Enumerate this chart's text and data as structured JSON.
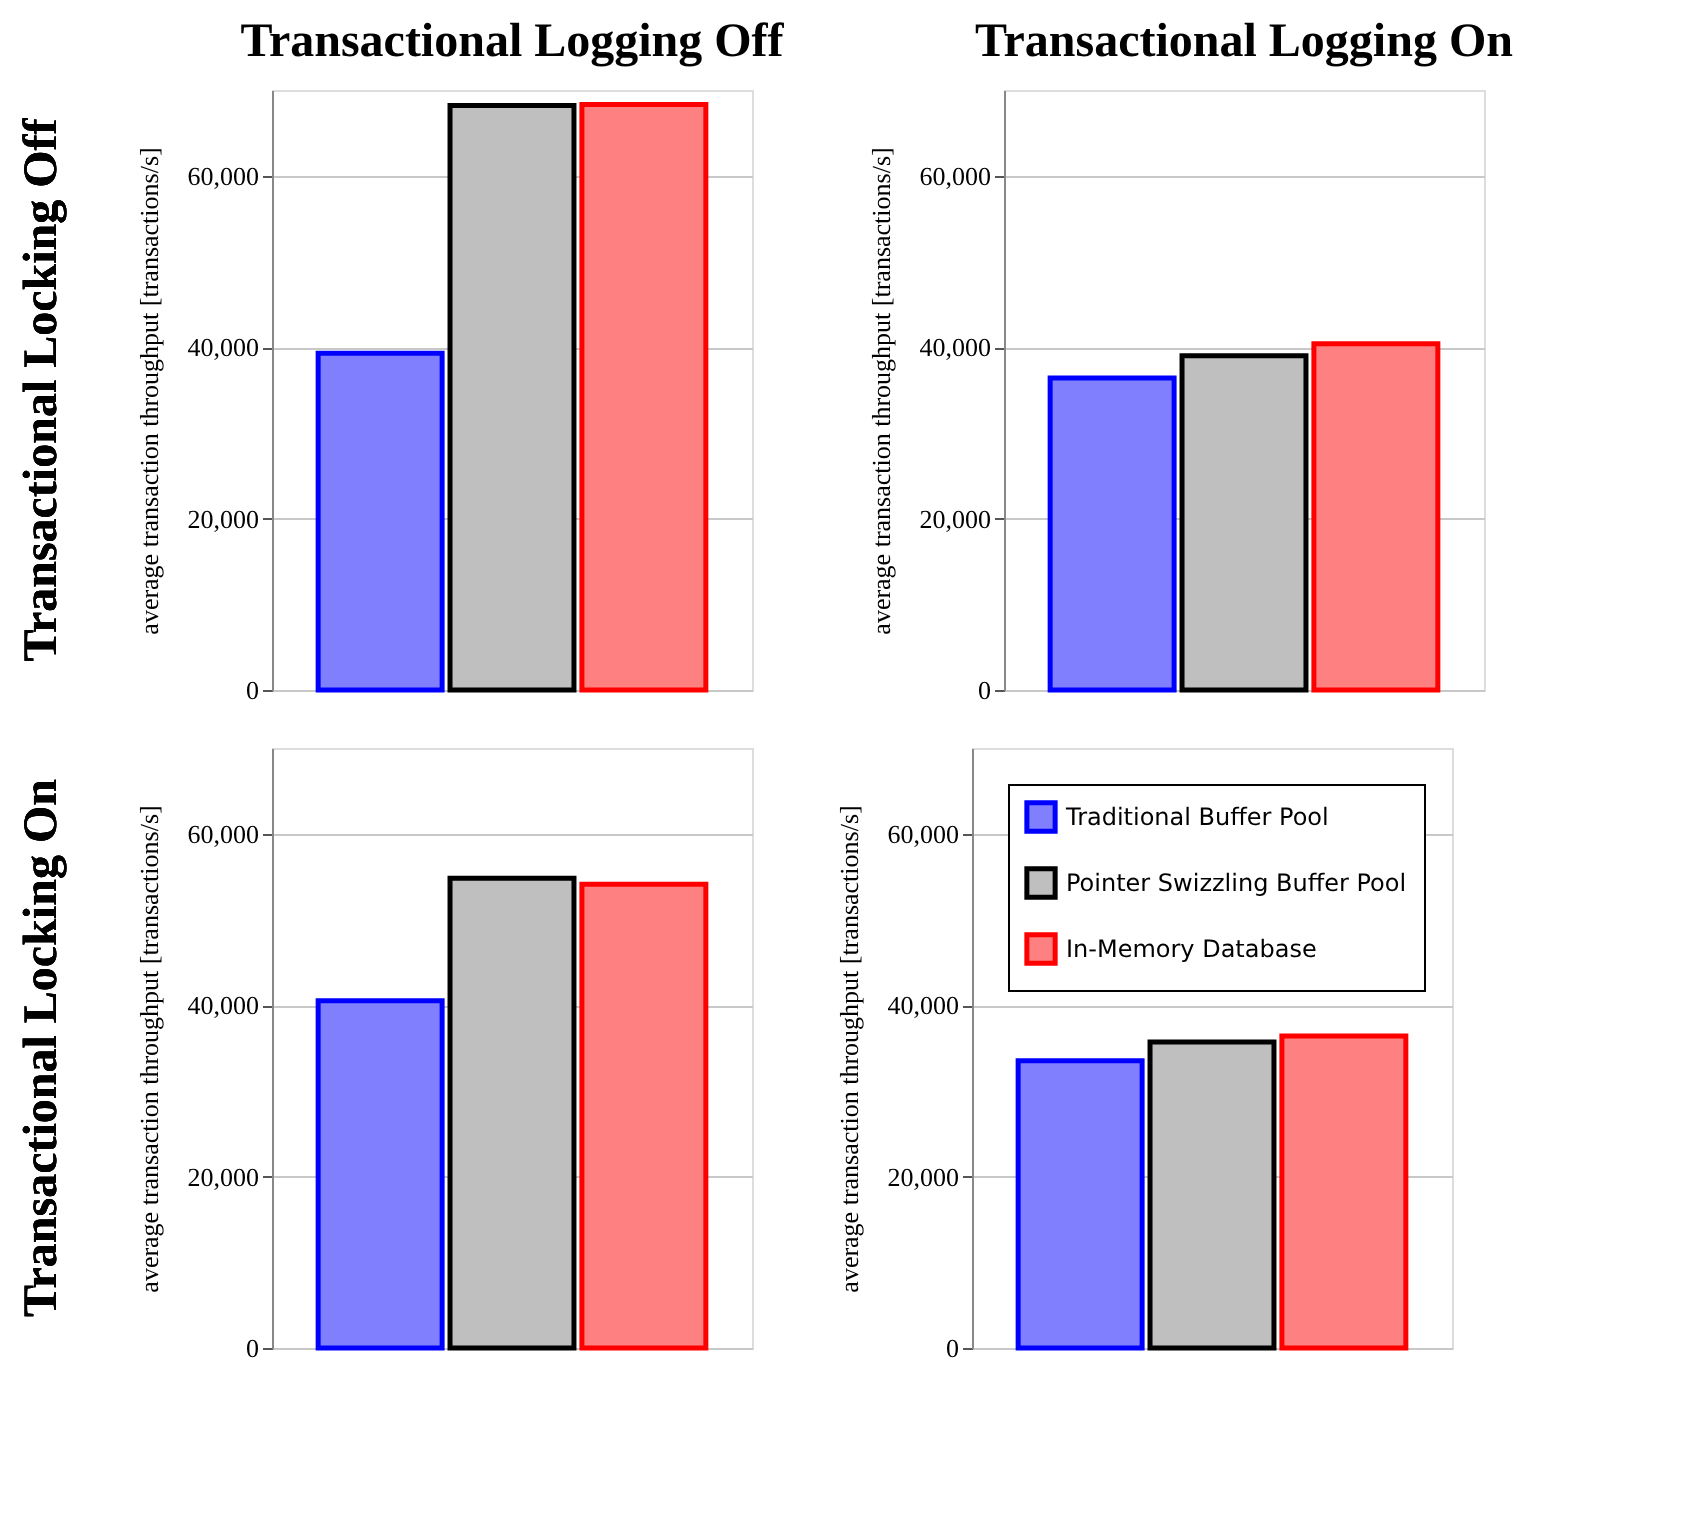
{
  "chart_data": [
    {
      "type": "bar",
      "title": "Transactional Logging Off",
      "annotations": [
        "Transactional Locking Off"
      ],
      "ylabel": "average transaction throughput [transactions/s]",
      "categories": [
        null
      ],
      "ylim": [
        0,
        70000
      ],
      "yticks": [
        0,
        {
          "value": 20000,
          "label": "20,000"
        },
        {
          "value": 40000,
          "label": "40,000"
        },
        {
          "value": 60000,
          "label": "60,000"
        }
      ],
      "grid": "y",
      "tick_labels": "y",
      "series": [
        {
          "color": "#8080ff",
          "values": [
            39300
          ]
        },
        {
          "color": "#bfbfbf",
          "values": [
            68200
          ]
        },
        {
          "color": "#ff8080",
          "values": [
            68300
          ]
        }
      ]
    },
    {
      "type": "bar",
      "title": "Transactional Logging On",
      "ylabel": "average transaction throughput [transactions/s]",
      "categories": [
        null
      ],
      "ylim": [
        0,
        70000
      ],
      "yticks": [
        0,
        {
          "value": 20000,
          "label": "20,000"
        },
        {
          "value": 40000,
          "label": "40,000"
        },
        {
          "value": 60000,
          "label": "60,000"
        }
      ],
      "grid": "y",
      "tick_labels": "y",
      "series": [
        {
          "color": "#8080ff",
          "values": [
            36400
          ]
        },
        {
          "color": "#bfbfbf",
          "values": [
            39000
          ]
        },
        {
          "color": "#ff8080",
          "values": [
            40400
          ]
        }
      ]
    },
    {
      "type": "bar",
      "annotations": [
        "Transactional Locking On"
      ],
      "ylabel": "average transaction throughput [transactions/s]",
      "categories": [
        null
      ],
      "ylim": [
        0,
        70000
      ],
      "yticks": [
        0,
        {
          "value": 20000,
          "label": "20,000"
        },
        {
          "value": 40000,
          "label": "40,000"
        },
        {
          "value": 60000,
          "label": "60,000"
        }
      ],
      "grid": "y",
      "tick_labels": "y",
      "series": [
        {
          "color": "#8080ff",
          "values": [
            40500
          ]
        },
        {
          "color": "#bfbfbf",
          "values": [
            54800
          ]
        },
        {
          "color": "#ff8080",
          "values": [
            54100
          ]
        }
      ]
    },
    {
      "type": "bar",
      "ylabel": "average transaction throughput [transactions/s]",
      "categories": [
        null
      ],
      "ylim": [
        0,
        70000
      ],
      "yticks": [
        0,
        {
          "value": 20000,
          "label": "20,000"
        },
        {
          "value": 40000,
          "label": "40,000"
        },
        {
          "value": 60000,
          "label": "60,000"
        }
      ],
      "grid": "y",
      "tick_labels": "y",
      "legend": "top left",
      "series": [
        {
          "name": "Traditional Buffer Pool",
          "color": "#8080ff",
          "values": [
            33500
          ]
        },
        {
          "name": "Pointer Swizzling Buffer Pool",
          "color": "#bfbfbf",
          "values": [
            35700
          ]
        },
        {
          "name": "In-Memory Database",
          "color": "#ff8080",
          "values": [
            36400
          ]
        }
      ]
    }
  ]
}
